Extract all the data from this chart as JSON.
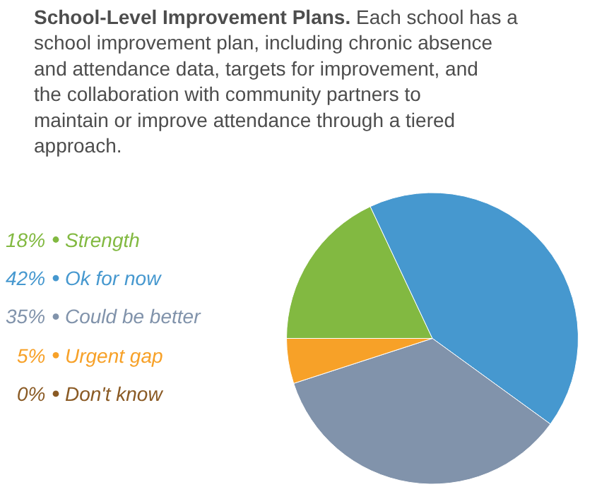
{
  "chart_data": {
    "type": "pie",
    "title": "School-Level Improvement Plans.",
    "subtitle": "Each school has a school improvement plan, including chronic absence and attendance data, targets for improvement, and the collaboration with community partners to maintain or improve attendance through a tiered approach.",
    "categories": [
      "Strength",
      "Ok for now",
      "Could be better",
      "Urgent gap",
      "Don't know"
    ],
    "values": [
      18,
      42,
      35,
      5,
      0
    ],
    "colors": [
      "#82b941",
      "#4698cf",
      "#8193ab",
      "#f7a128",
      "#8a5a24"
    ],
    "value_labels": [
      "18%",
      "42%",
      "35%",
      "5%",
      "0%"
    ],
    "legend": "left"
  }
}
